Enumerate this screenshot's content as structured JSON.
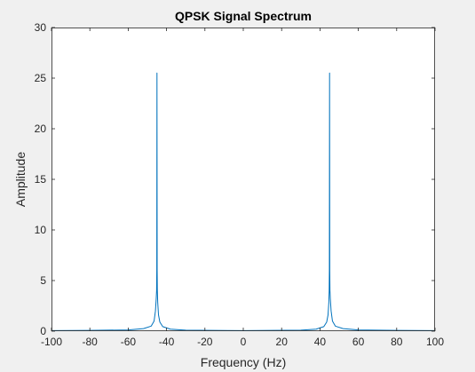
{
  "chart_data": {
    "type": "line",
    "title": "QPSK Signal Spectrum",
    "xlabel": "Frequency (Hz)",
    "ylabel": "Amplitude",
    "xlim": [
      -100,
      100
    ],
    "ylim": [
      0,
      30
    ],
    "xticks": [
      -100,
      -80,
      -60,
      -40,
      -20,
      0,
      20,
      40,
      60,
      80,
      100
    ],
    "yticks": [
      0,
      5,
      10,
      15,
      20,
      25,
      30
    ],
    "grid": false,
    "line_color": "#0072bd",
    "series": [
      {
        "name": "",
        "x": [
          -100,
          -80,
          -60,
          -52,
          -48,
          -46.5,
          -45.8,
          -45.4,
          -45.2,
          -45.1,
          -45,
          -44.9,
          -44.8,
          -44.6,
          -44.2,
          -43.5,
          -42,
          -38,
          -30,
          0,
          30,
          38,
          42,
          43.5,
          44.2,
          44.6,
          44.8,
          44.9,
          45,
          45.1,
          45.2,
          45.4,
          45.8,
          46.5,
          48,
          52,
          60,
          80,
          100
        ],
        "y": [
          0.05,
          0.08,
          0.12,
          0.25,
          0.5,
          1.0,
          2.0,
          3.2,
          4.0,
          6.0,
          25.5,
          6.0,
          4.0,
          2.8,
          1.6,
          0.9,
          0.45,
          0.2,
          0.1,
          0.05,
          0.1,
          0.2,
          0.45,
          0.9,
          1.6,
          2.8,
          4.0,
          6.0,
          25.5,
          6.0,
          4.0,
          3.2,
          2.0,
          1.0,
          0.5,
          0.25,
          0.12,
          0.08,
          0.05
        ]
      }
    ]
  }
}
